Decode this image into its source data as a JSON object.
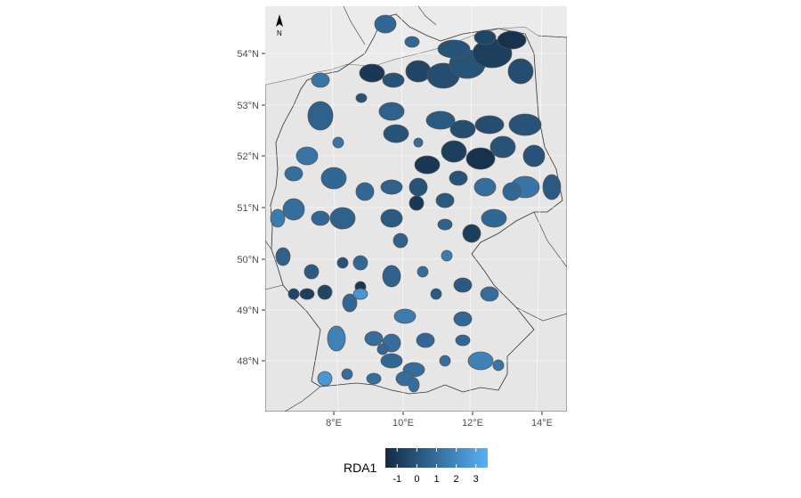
{
  "map": {
    "y_axis_labels": [
      "54°N",
      "53°N",
      "52°N",
      "51°N",
      "50°N",
      "49°N",
      "48°N"
    ],
    "x_axis_labels": [
      "8°E",
      "10°E",
      "12°E",
      "14°E"
    ],
    "north_arrow_label": "N",
    "colors": {
      "panel_bg": "#ebebeb",
      "land_bg": "#e6e6e6",
      "grid": "#ffffff",
      "region_border": "#5a5a5a",
      "scale_low": "#132b43",
      "scale_high": "#56b1f7"
    }
  },
  "legend": {
    "title": "RDA1",
    "ticks": [
      "-1",
      "0",
      "1",
      "2",
      "3"
    ],
    "value_range": [
      -1.6,
      3.6
    ]
  }
}
